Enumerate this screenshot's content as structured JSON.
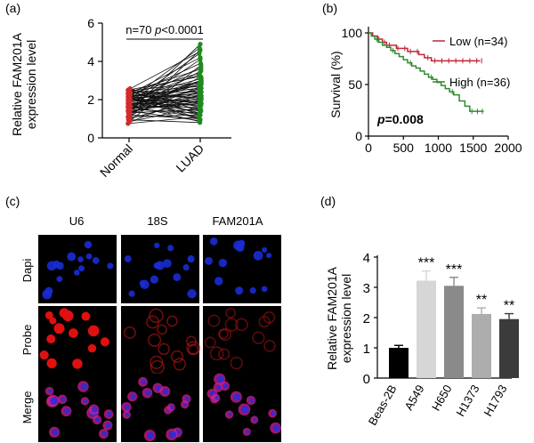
{
  "panels": {
    "a": {
      "letter": "(a)",
      "chart_data": {
        "type": "paired-scatter",
        "ylabel_line1": "Relative FAM201A",
        "ylabel_line2": "expression level",
        "categories": [
          "Normal",
          "LUAD"
        ],
        "yticks": [
          "0",
          "2",
          "4",
          "6"
        ],
        "ylim": [
          0,
          6
        ],
        "annotation_n": "n=70",
        "annotation_p": "p",
        "annotation_pval": "<0.0001",
        "n": 70,
        "colors": {
          "normal": "#d42a2a",
          "luad": "#1f8a1f",
          "line": "#111111"
        },
        "pairs": [
          [
            0.75,
            1.1
          ],
          [
            0.8,
            2.3
          ],
          [
            0.85,
            1.6
          ],
          [
            0.9,
            3.8
          ],
          [
            0.95,
            0.8
          ],
          [
            1.0,
            2.0
          ],
          [
            1.05,
            4.6
          ],
          [
            1.1,
            1.2
          ],
          [
            1.15,
            2.7
          ],
          [
            1.2,
            1.0
          ],
          [
            1.25,
            3.2
          ],
          [
            1.3,
            1.5
          ],
          [
            1.35,
            2.1
          ],
          [
            1.4,
            4.9
          ],
          [
            1.42,
            0.9
          ],
          [
            1.45,
            2.6
          ],
          [
            1.5,
            1.3
          ],
          [
            1.52,
            3.5
          ],
          [
            1.55,
            1.8
          ],
          [
            1.58,
            2.2
          ],
          [
            1.6,
            4.1
          ],
          [
            1.62,
            1.1
          ],
          [
            1.65,
            2.9
          ],
          [
            1.68,
            1.6
          ],
          [
            1.7,
            3.0
          ],
          [
            1.72,
            0.85
          ],
          [
            1.75,
            2.4
          ],
          [
            1.78,
            1.9
          ],
          [
            1.8,
            4.4
          ],
          [
            1.82,
            1.4
          ],
          [
            1.85,
            2.5
          ],
          [
            1.88,
            3.7
          ],
          [
            1.9,
            1.2
          ],
          [
            1.92,
            2.8
          ],
          [
            1.95,
            2.0
          ],
          [
            1.98,
            3.3
          ],
          [
            2.0,
            1.5
          ],
          [
            2.02,
            4.7
          ],
          [
            2.05,
            1.7
          ],
          [
            2.08,
            2.3
          ],
          [
            2.1,
            3.1
          ],
          [
            2.12,
            0.95
          ],
          [
            2.15,
            2.6
          ],
          [
            2.18,
            3.9
          ],
          [
            2.2,
            1.3
          ],
          [
            2.22,
            2.1
          ],
          [
            2.25,
            3.4
          ],
          [
            2.28,
            1.8
          ],
          [
            2.3,
            4.2
          ],
          [
            2.32,
            1.0
          ],
          [
            2.35,
            2.7
          ],
          [
            2.38,
            2.4
          ],
          [
            2.4,
            3.6
          ],
          [
            2.42,
            1.6
          ],
          [
            2.45,
            2.9
          ],
          [
            2.48,
            1.2
          ],
          [
            2.5,
            3.2
          ],
          [
            2.52,
            2.0
          ],
          [
            2.55,
            4.5
          ],
          [
            2.58,
            1.4
          ],
          [
            1.7,
            2.5
          ],
          [
            1.9,
            3.0
          ],
          [
            2.0,
            1.9
          ],
          [
            1.6,
            2.8
          ],
          [
            1.8,
            1.7
          ],
          [
            2.1,
            2.2
          ],
          [
            1.5,
            3.0
          ],
          [
            1.4,
            1.9
          ],
          [
            2.2,
            2.6
          ],
          [
            1.3,
            2.4
          ]
        ]
      }
    },
    "b": {
      "letter": "(b)",
      "chart_data": {
        "type": "line",
        "subtype": "kaplan-meier",
        "ylabel": "Survival (%)",
        "xticks": [
          "0",
          "500",
          "1000",
          "1500",
          "2000"
        ],
        "yticks": [
          "0",
          "50",
          "100"
        ],
        "xlim": [
          0,
          2000
        ],
        "ylim": [
          0,
          100
        ],
        "p_label": "p",
        "p_value": "=0.008",
        "series": [
          {
            "name": "Low (n=34)",
            "color": "#c0273a",
            "x": [
              0,
              60,
              130,
              200,
              260,
              330,
              400,
              480,
              560,
              640,
              720,
              800,
              900,
              1000,
              1600
            ],
            "y": [
              100,
              97,
              94,
              91,
              88,
              88,
              85,
              85,
              82,
              82,
              79,
              76,
              73,
              73,
              73
            ],
            "censored_x": [
              150,
              230,
              300,
              420,
              520,
              600,
              700,
              850,
              950,
              1050,
              1150,
              1250,
              1350,
              1450,
              1550,
              1620
            ]
          },
          {
            "name": "High (n=36)",
            "color": "#2e8b2e",
            "x": [
              0,
              40,
              90,
              140,
              200,
              260,
              320,
              380,
              440,
              500,
              560,
              620,
              680,
              740,
              800,
              860,
              920,
              980,
              1040,
              1100,
              1160,
              1220,
              1300,
              1380,
              1450,
              1650
            ],
            "y": [
              100,
              97,
              94,
              91,
              88,
              86,
              83,
              80,
              77,
              74,
              71,
              68,
              66,
              63,
              60,
              57,
              55,
              52,
              49,
              46,
              43,
              40,
              34,
              29,
              24,
              24
            ],
            "censored_x": [
              120,
              350,
              600,
              900,
              1200,
              1480,
              1560,
              1630
            ]
          }
        ]
      }
    },
    "c": {
      "letter": "(c)",
      "columns": [
        "U6",
        "18S",
        "FAM201A"
      ],
      "rows": [
        "Dapi",
        "Probe",
        "Merge"
      ]
    },
    "d": {
      "letter": "(d)",
      "chart_data": {
        "type": "bar",
        "ylabel_line1": "Relative FAM201A",
        "ylabel_line2": "expression level",
        "categories": [
          "Beas-2B",
          "A549",
          "H650",
          "H1373",
          "H1793"
        ],
        "values": [
          1.0,
          3.22,
          3.05,
          2.12,
          1.95
        ],
        "errors": [
          0.08,
          0.32,
          0.28,
          0.2,
          0.18
        ],
        "significance": [
          "",
          "***",
          "***",
          "**",
          "**"
        ],
        "colors": [
          "#000000",
          "#d6d6d6",
          "#8a8a8a",
          "#adadad",
          "#3b3b3b"
        ],
        "yticks": [
          "0",
          "1",
          "2",
          "3",
          "4"
        ],
        "ylim": [
          0,
          4
        ]
      }
    }
  }
}
